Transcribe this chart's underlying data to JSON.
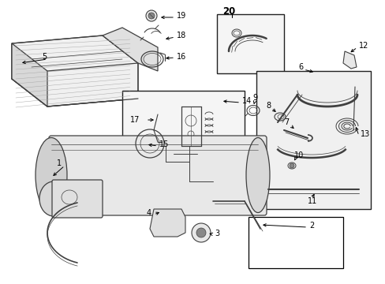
{
  "bg_color": "#ffffff",
  "lc": "#404040",
  "lc2": "#606060",
  "lw": 0.9,
  "fig_width": 4.89,
  "fig_height": 3.6,
  "dpi": 100,
  "font_size": 7.0
}
